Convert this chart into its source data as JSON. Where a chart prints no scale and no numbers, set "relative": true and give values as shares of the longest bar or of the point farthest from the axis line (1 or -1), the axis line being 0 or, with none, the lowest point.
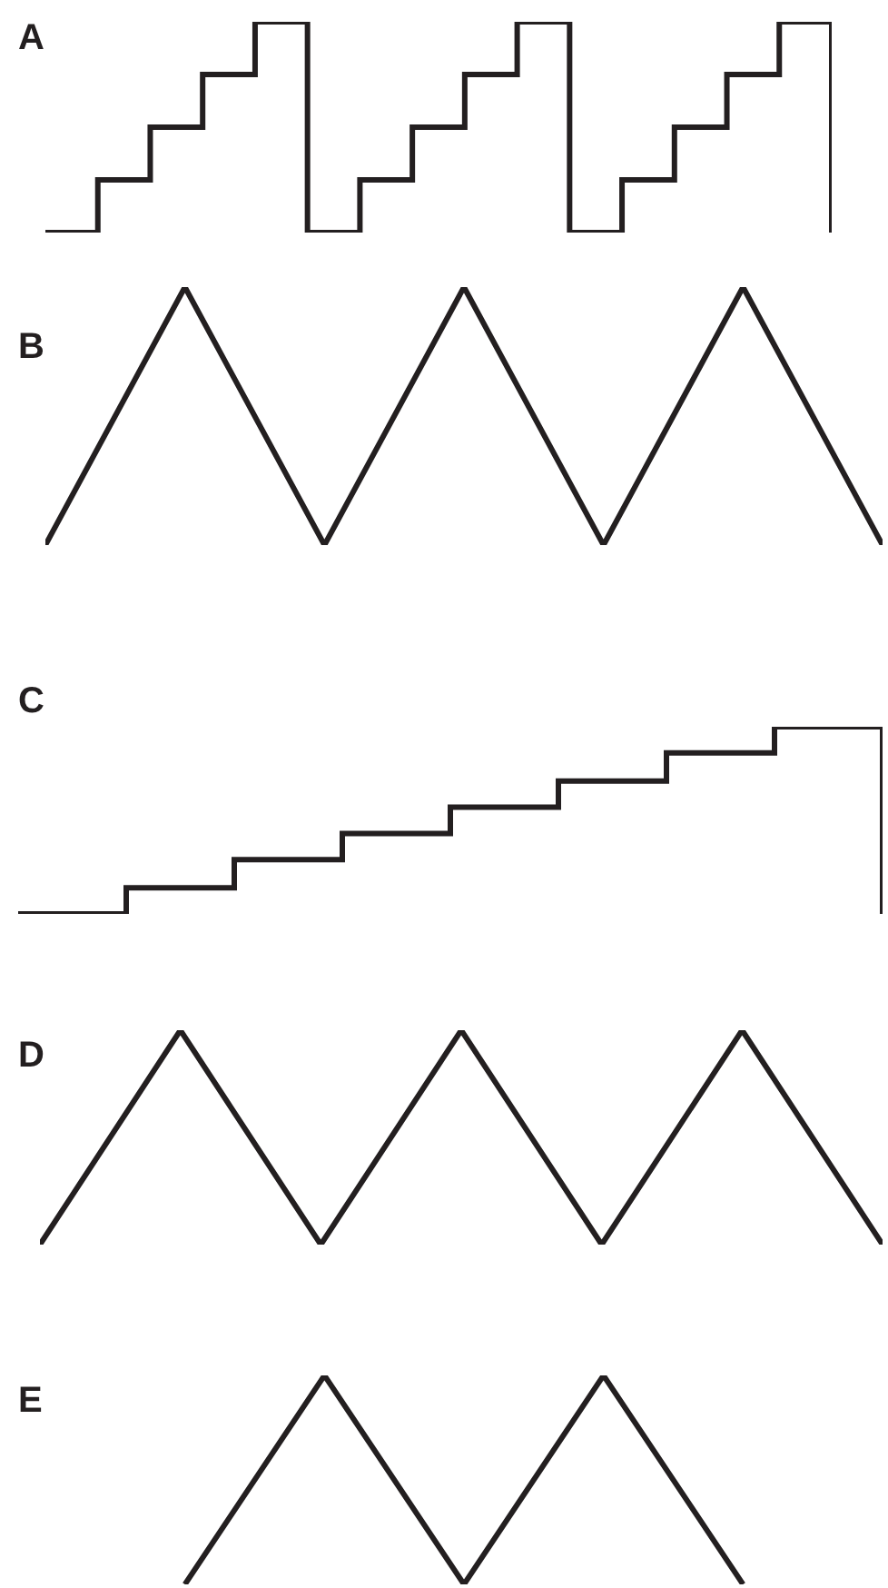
{
  "chart_data": [
    {
      "type": "step",
      "title": "A",
      "relative": true,
      "categories": [
        null,
        null,
        null,
        null,
        null,
        null,
        null,
        null,
        null,
        null,
        null,
        null,
        null,
        null,
        null,
        null
      ],
      "color": "#231f20",
      "values": [
        0,
        0.25,
        0.5,
        0.75,
        1,
        0,
        0.25,
        0.5,
        0.75,
        1,
        0,
        0.25,
        0.5,
        0.75,
        1,
        0
      ]
    },
    {
      "type": "line",
      "title": "B",
      "relative": true,
      "categories": [
        null,
        null,
        null,
        null,
        null,
        null,
        null
      ],
      "color": "#231f20",
      "values": [
        0,
        1,
        0,
        1,
        0,
        1,
        0
      ]
    },
    {
      "type": "step",
      "title": "C",
      "relative": true,
      "categories": [
        null,
        null,
        null,
        null,
        null,
        null,
        null,
        null,
        null
      ],
      "color": "#231f20",
      "values": [
        0,
        0.14,
        0.29,
        0.43,
        0.57,
        0.71,
        0.86,
        1,
        0
      ]
    },
    {
      "type": "line",
      "title": "D",
      "relative": true,
      "categories": [
        null,
        null,
        null,
        null,
        null,
        null,
        null
      ],
      "color": "#231f20",
      "values": [
        0,
        1,
        0,
        1,
        0,
        1,
        0
      ]
    },
    {
      "type": "line",
      "title": "E",
      "relative": true,
      "categories": [
        null,
        null,
        null,
        null,
        null,
        null,
        null
      ],
      "color": "#231f20",
      "values": [
        null,
        0,
        1,
        0,
        1,
        0,
        null
      ]
    }
  ]
}
